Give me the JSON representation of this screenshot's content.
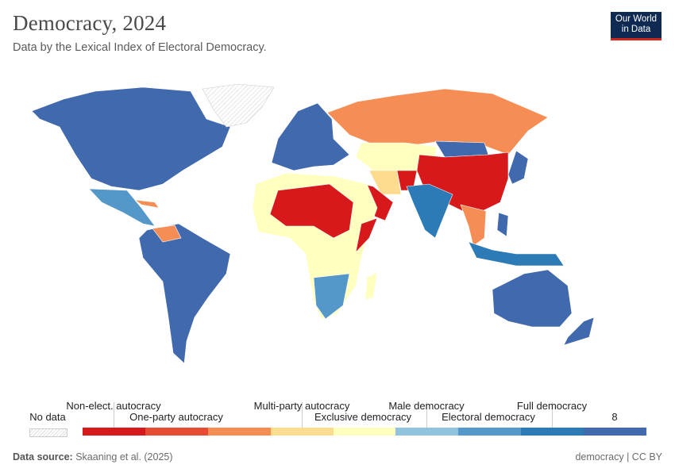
{
  "header": {
    "title": "Democracy, 2024",
    "subtitle": "Data by the Lexical Index of Electoral Democracy.",
    "logo": "Our World in Data"
  },
  "legend": {
    "no_data": "No data",
    "bins": [
      {
        "label": "Non-elect. autocracy",
        "color": "#d7191c"
      },
      {
        "label": "One-party autocracy",
        "color": "#e74a33"
      },
      {
        "label": "Multi-party autocracy",
        "color": "#f68d54"
      },
      {
        "label": "",
        "color": "#fddb8f"
      },
      {
        "label": "Exclusive democracy",
        "color": "#ffffbf"
      },
      {
        "label": "Male democracy",
        "color": "#91c3dc"
      },
      {
        "label": "Electoral democracy",
        "color": "#5497c9"
      },
      {
        "label": "Full democracy",
        "color": "#2c7bb6"
      },
      {
        "label": "8",
        "color": "#4169ad"
      }
    ]
  },
  "footer": {
    "source_label": "Data source:",
    "source": "Skaaning et al. (2025)",
    "right": "democracy | CC BY"
  }
}
